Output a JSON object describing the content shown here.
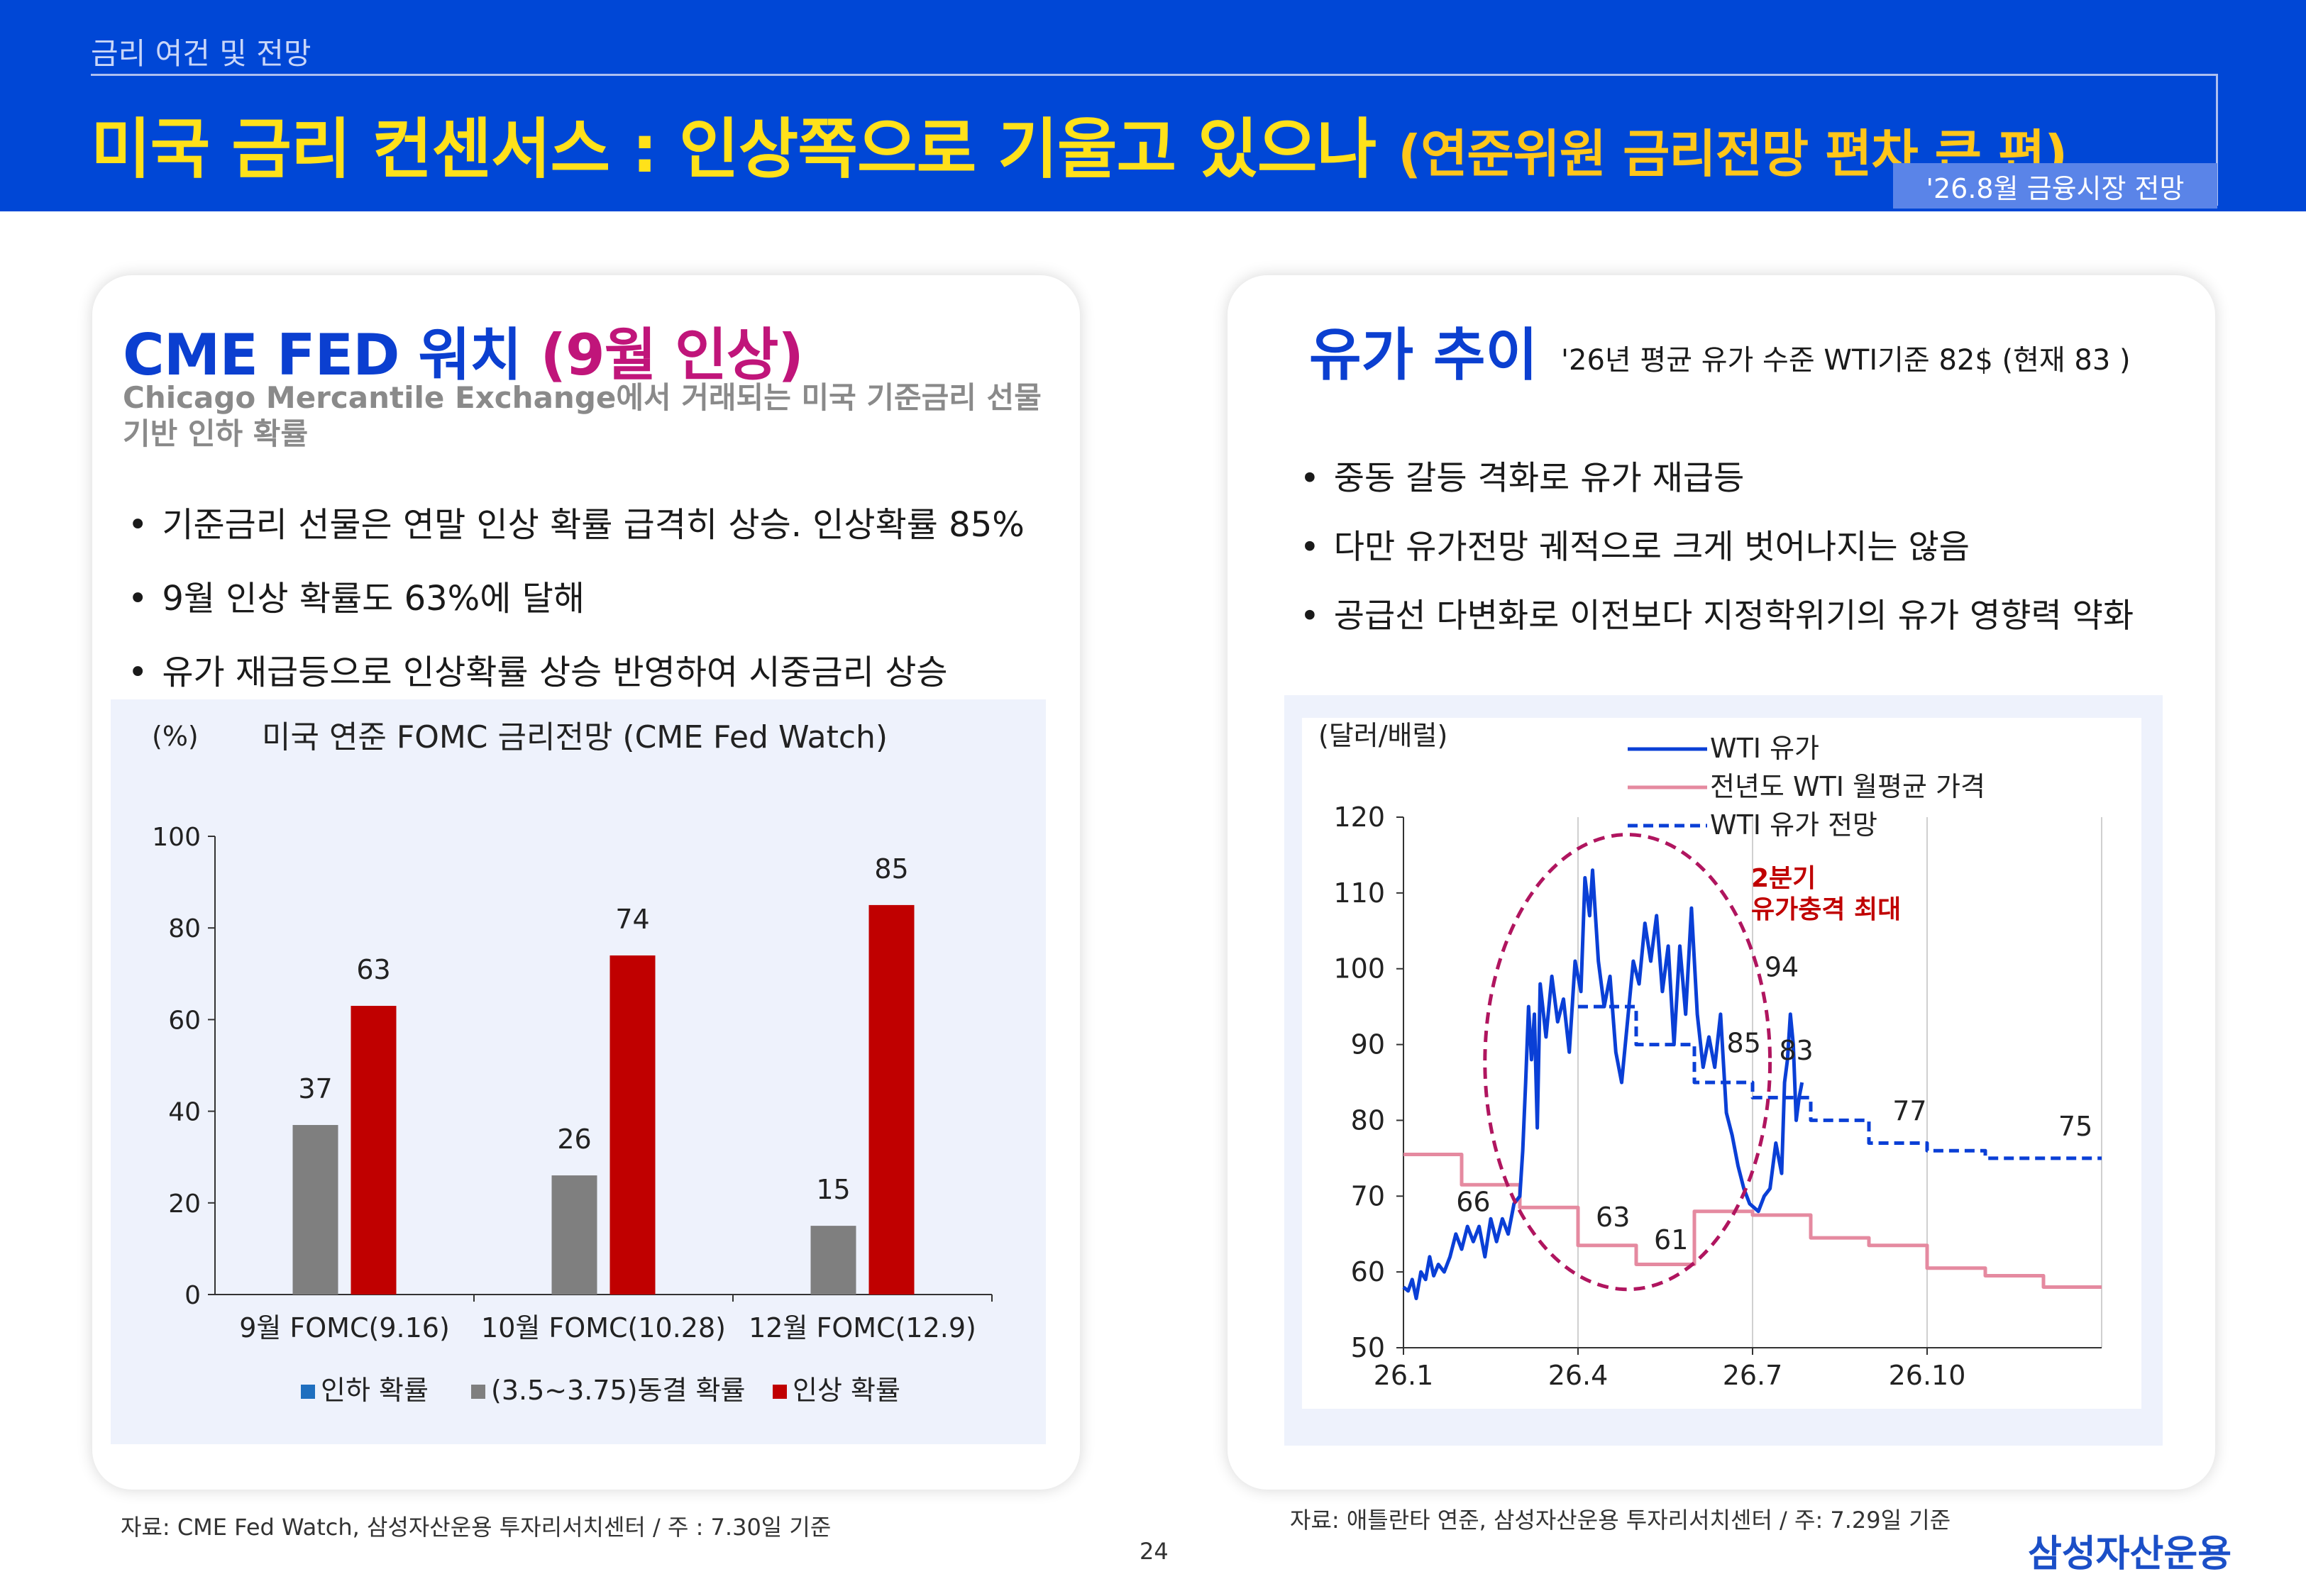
{
  "header": {
    "section": "금리 여건 및 전망",
    "title_main": "미국 금리 컨센서스 : 인상쪽으로 기울고 있으나 ",
    "title_sub": "(연준위원 금리전망 편차 큰 편)",
    "tag": "'26.8월 금융시장 전망"
  },
  "left": {
    "title_a": "CME FED 워치 ",
    "title_b": "(9월 인상)",
    "desc": "Chicago Mercantile Exchange에서 거래되는 미국 기준금리 선물 기반 인하 확률",
    "bullets": [
      "기준금리 선물은 연말 인상 확률 급격히 상승. 인상확률 85%",
      "9월 인상 확률도 63%에 달해",
      "유가 재급등으로 인상확률 상승 반영하여 시중금리 상승"
    ],
    "source": "자료: CME Fed Watch, 삼성자산운용 투자리서치센터 / 주 : 7.30일 기준"
  },
  "right": {
    "title": "유가 추이",
    "desc": "'26년 평균 유가 수준 WTI기준 82$ (현재 83 )",
    "bullets": [
      "중동 갈등 격화로 유가 재급등",
      "다만 유가전망 궤적으로 크게 벗어나지는 않음",
      "공급선 다변화로 이전보다 지정학위기의 유가 영향력 약화"
    ],
    "source": "자료: 애틀란타 연준, 삼성자산운용 투자리서치센터 / 주: 7.29일 기준"
  },
  "footer": {
    "page": "24",
    "brand": "삼성자산운용"
  },
  "chart_data": [
    {
      "type": "bar",
      "title": "미국 연준 FOMC 금리전망 (CME Fed Watch)",
      "ylabel": "(%)",
      "ylim": [
        0,
        100
      ],
      "yticks": [
        0,
        20,
        40,
        60,
        80,
        100
      ],
      "categories": [
        "9월 FOMC(9.16)",
        "10월 FOMC(10.28)",
        "12월 FOMC(12.9)"
      ],
      "series": [
        {
          "name": "인하 확률",
          "color": "#1f6fbf",
          "values": [
            0,
            0,
            0
          ]
        },
        {
          "name": "(3.5~3.75)동결 확률",
          "color": "#7f7f7f",
          "values": [
            37,
            26,
            15
          ]
        },
        {
          "name": "인상 확률",
          "color": "#c00000",
          "values": [
            63,
            74,
            85
          ]
        }
      ],
      "legend": "bottom",
      "grid": false
    },
    {
      "type": "line",
      "ylabel": "(달러/배럴)",
      "ylim": [
        50,
        120
      ],
      "yticks": [
        50,
        60,
        70,
        80,
        90,
        100,
        110,
        120
      ],
      "xlim": [
        0,
        12
      ],
      "xticks": [
        {
          "x": 0,
          "label": "26.1"
        },
        {
          "x": 3,
          "label": "26.4"
        },
        {
          "x": 6,
          "label": "26.7"
        },
        {
          "x": 9,
          "label": "26.10"
        }
      ],
      "vgrid": [
        3,
        6,
        9,
        12
      ],
      "series": [
        {
          "name": "WTI 유가",
          "color": "#0a3fd6",
          "style": "solid",
          "points": [
            [
              0.0,
              58
            ],
            [
              0.08,
              57.5
            ],
            [
              0.15,
              59
            ],
            [
              0.22,
              56.5
            ],
            [
              0.3,
              60
            ],
            [
              0.38,
              59
            ],
            [
              0.45,
              62
            ],
            [
              0.52,
              59.5
            ],
            [
              0.6,
              61
            ],
            [
              0.7,
              60
            ],
            [
              0.8,
              62
            ],
            [
              0.9,
              65
            ],
            [
              1.0,
              63
            ],
            [
              1.1,
              66
            ],
            [
              1.2,
              64
            ],
            [
              1.3,
              66
            ],
            [
              1.4,
              62
            ],
            [
              1.5,
              67
            ],
            [
              1.6,
              64
            ],
            [
              1.7,
              67
            ],
            [
              1.8,
              65
            ],
            [
              1.9,
              69
            ],
            [
              2.0,
              70
            ],
            [
              2.05,
              76
            ],
            [
              2.1,
              85
            ],
            [
              2.15,
              95
            ],
            [
              2.2,
              88
            ],
            [
              2.25,
              94
            ],
            [
              2.3,
              79
            ],
            [
              2.35,
              98
            ],
            [
              2.45,
              91
            ],
            [
              2.55,
              99
            ],
            [
              2.65,
              93
            ],
            [
              2.75,
              96
            ],
            [
              2.85,
              89
            ],
            [
              2.95,
              101
            ],
            [
              3.05,
              97
            ],
            [
              3.12,
              112
            ],
            [
              3.2,
              107
            ],
            [
              3.25,
              113
            ],
            [
              3.35,
              101
            ],
            [
              3.45,
              95
            ],
            [
              3.55,
              99
            ],
            [
              3.65,
              89
            ],
            [
              3.75,
              85
            ],
            [
              3.85,
              93
            ],
            [
              3.95,
              101
            ],
            [
              4.05,
              98
            ],
            [
              4.15,
              106
            ],
            [
              4.25,
              101
            ],
            [
              4.35,
              107
            ],
            [
              4.45,
              97
            ],
            [
              4.55,
              103
            ],
            [
              4.65,
              90
            ],
            [
              4.75,
              103
            ],
            [
              4.85,
              94
            ],
            [
              4.95,
              108
            ],
            [
              5.05,
              94
            ],
            [
              5.15,
              87
            ],
            [
              5.25,
              91
            ],
            [
              5.35,
              87
            ],
            [
              5.45,
              94
            ],
            [
              5.55,
              81
            ],
            [
              5.65,
              78
            ],
            [
              5.75,
              74
            ],
            [
              5.85,
              71
            ],
            [
              5.95,
              69
            ],
            [
              6.1,
              68
            ],
            [
              6.2,
              70
            ],
            [
              6.3,
              71
            ],
            [
              6.4,
              77
            ],
            [
              6.5,
              73
            ],
            [
              6.55,
              85
            ],
            [
              6.6,
              88
            ],
            [
              6.65,
              94
            ],
            [
              6.7,
              90
            ],
            [
              6.75,
              80
            ],
            [
              6.8,
              83
            ],
            [
              6.85,
              85
            ]
          ]
        },
        {
          "name": "전년도 WTI 월평균 가격",
          "color": "#e58aa0",
          "style": "step",
          "points": [
            [
              0,
              75.5
            ],
            [
              1,
              75.5
            ],
            [
              1,
              71.5
            ],
            [
              2,
              71.5
            ],
            [
              2,
              68.5
            ],
            [
              3,
              68.5
            ],
            [
              3,
              63.5
            ],
            [
              4,
              63.5
            ],
            [
              4,
              61
            ],
            [
              5,
              61
            ],
            [
              5,
              68
            ],
            [
              6,
              68
            ],
            [
              6,
              67.5
            ],
            [
              7,
              67.5
            ],
            [
              7,
              64.5
            ],
            [
              8,
              64.5
            ],
            [
              8,
              63.5
            ],
            [
              9,
              63.5
            ],
            [
              9,
              60.5
            ],
            [
              10,
              60.5
            ],
            [
              10,
              59.5
            ],
            [
              11,
              59.5
            ],
            [
              11,
              58
            ],
            [
              12,
              58
            ]
          ]
        },
        {
          "name": "WTI 유가 전망",
          "color": "#0a3fd6",
          "style": "dashed-step",
          "points": [
            [
              3,
              95
            ],
            [
              4,
              95
            ],
            [
              4,
              90
            ],
            [
              5,
              90
            ],
            [
              5,
              85
            ],
            [
              6,
              85
            ],
            [
              6,
              83
            ],
            [
              7,
              83
            ],
            [
              7,
              80
            ],
            [
              8,
              80
            ],
            [
              8,
              77
            ],
            [
              9,
              77
            ],
            [
              9,
              76
            ],
            [
              10,
              76
            ],
            [
              10,
              75
            ],
            [
              12,
              75
            ]
          ]
        }
      ],
      "data_labels": [
        {
          "text": "66",
          "x": 1.2,
          "y": 68
        },
        {
          "text": "63",
          "x": 3.6,
          "y": 66
        },
        {
          "text": "61",
          "x": 4.6,
          "y": 63
        },
        {
          "text": "85",
          "x": 5.85,
          "y": 89
        },
        {
          "text": "94",
          "x": 6.5,
          "y": 99
        },
        {
          "text": "83",
          "x": 6.75,
          "y": 88
        },
        {
          "text": "77",
          "x": 8.7,
          "y": 80
        },
        {
          "text": "75",
          "x": 11.55,
          "y": 78
        }
      ],
      "annotation": {
        "text_lines": [
          "2분기",
          "유가충격 최대"
        ],
        "color": "#c00000"
      },
      "highlight_ellipse": {
        "cx": 3.85,
        "cy": 87.7,
        "rx": 2.45,
        "ry": 30,
        "color": "#b0155f"
      },
      "legend": "top",
      "grid": true
    }
  ]
}
